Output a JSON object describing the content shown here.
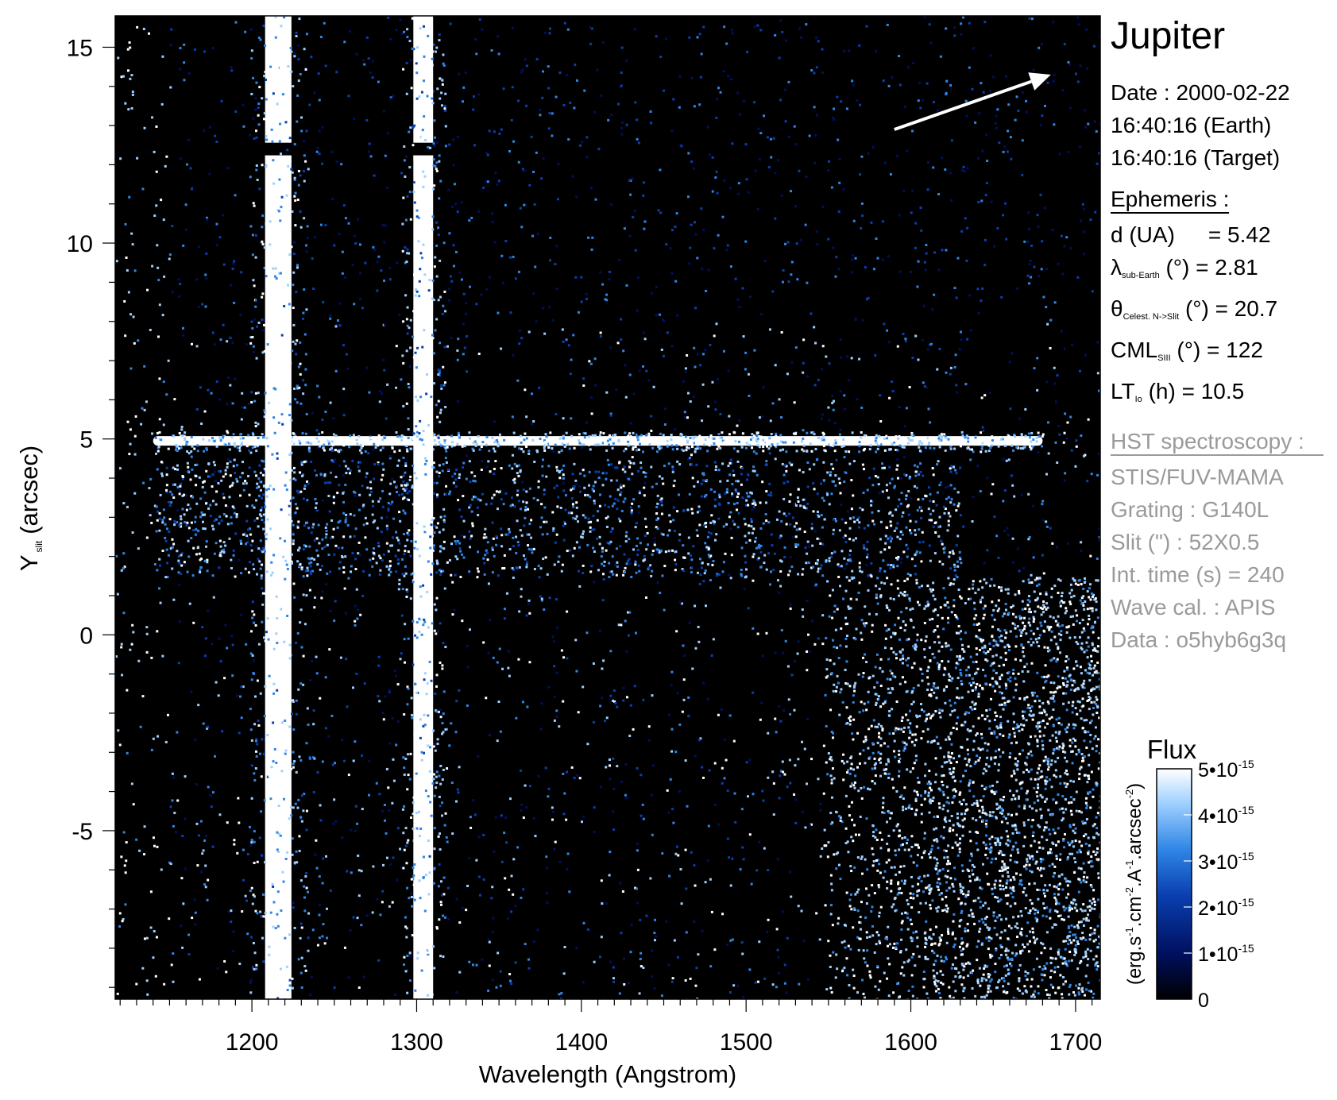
{
  "chart_data": {
    "type": "heatmap",
    "title": "",
    "xlabel": "Wavelength (Angstrom)",
    "ylabel_main": "Y",
    "ylabel_sub": "slit",
    "ylabel_unit": "(arcsec)",
    "xlim": [
      1117,
      1715
    ],
    "ylim": [
      -9.3,
      15.8
    ],
    "x_ticks": [
      1200,
      1300,
      1400,
      1500,
      1600,
      1700
    ],
    "x_tick_labels": [
      "1200",
      "1300",
      "1400",
      "1500",
      "1600",
      "1700"
    ],
    "y_ticks": [
      -5,
      0,
      5,
      10,
      15
    ],
    "y_tick_labels": [
      "-5",
      "0",
      "5",
      "10",
      "15"
    ],
    "features": {
      "vertical_emission_lines": [
        {
          "wavelength": 1216,
          "width": 16,
          "y_from": -9.3,
          "y_to": 15.8,
          "gap_at": 12.4
        },
        {
          "wavelength": 1304,
          "width": 12,
          "y_from": -9.3,
          "y_to": 15.8,
          "gap_at": 12.4
        }
      ],
      "horizontal_emission_band": {
        "y": 4.95,
        "x_from": 1140,
        "x_to": 1680
      },
      "diffuse_band": {
        "y_from": 1.5,
        "y_to": 4.5,
        "x_from": 1140,
        "x_to": 1630
      },
      "continuum_region": {
        "x_from": 1545,
        "x_to": 1715,
        "y_from": -9.3,
        "y_to": 1.5
      }
    },
    "direction_arrow": {
      "from": [
        1590,
        12.9
      ],
      "to": [
        1685,
        14.3
      ]
    },
    "colorbar": {
      "title": "Flux",
      "unit_label": "(erg.s-1.cm-2.A-1.arcsec-2)",
      "min": 0,
      "max": 5e-15,
      "tick_values": [
        0,
        1e-15,
        2e-15,
        3e-15,
        4e-15,
        5e-15
      ],
      "tick_labels": [
        "0",
        "1•10-15",
        "2•10-15",
        "3•10-15",
        "4•10-15",
        "5•10-15"
      ],
      "colors": [
        "#000000",
        "#001060",
        "#0a3fb0",
        "#2f86e6",
        "#9fd0ff",
        "#ffffff"
      ]
    }
  },
  "info": {
    "planet": "Jupiter",
    "date_line": "Date : 2000-02-22",
    "time_earth": "16:40:16 (Earth)",
    "time_target": "16:40:16 (Target)",
    "ephemeris_title": "Ephemeris :",
    "d_label": "d (UA)",
    "d_value": "= 5.42",
    "lambda_symbol": "λ",
    "lambda_sub": "sub-Earth",
    "lambda_rest": " (°)  = 2.81",
    "theta_symbol": "θ",
    "theta_sub": "Celest. N->Slit",
    "theta_rest": " (°) = 20.7",
    "cml_main": "CML",
    "cml_sub": "SIII",
    "cml_rest": " (°) = 122",
    "lt_main": "LT",
    "lt_sub": "Io",
    "lt_rest": " (h) = 10.5",
    "hst_title": "HST spectroscopy :",
    "instrument": "STIS/FUV-MAMA",
    "grating": "Grating : G140L",
    "slit": "Slit (\") : 52X0.5",
    "int_time": "Int. time (s) = 240",
    "wave_cal": "Wave cal. : APIS",
    "data_id": "Data : o5hyb6g3q"
  }
}
